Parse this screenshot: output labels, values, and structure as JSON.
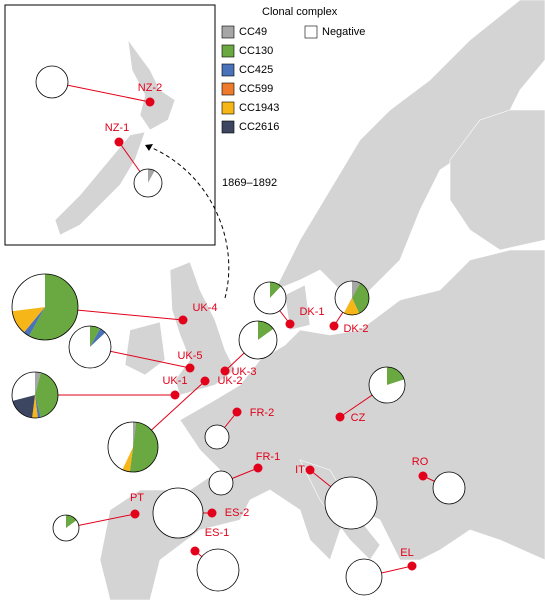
{
  "legend": {
    "title": "Clonal complex",
    "items": [
      {
        "name": "CC49",
        "color": "#a6a6a6"
      },
      {
        "name": "CC130",
        "color": "#6aa842"
      },
      {
        "name": "CC425",
        "color": "#4a72b8"
      },
      {
        "name": "CC599",
        "color": "#ee7a2c"
      },
      {
        "name": "CC1943",
        "color": "#f7b618"
      },
      {
        "name": "CC2616",
        "color": "#3c4660"
      },
      {
        "name": "Negative",
        "color": "#ffffff"
      }
    ]
  },
  "annotation": "1869–1892",
  "sites": [
    {
      "label": "NZ-2",
      "values": [
        0,
        0,
        0,
        0,
        0,
        0,
        100
      ]
    },
    {
      "label": "NZ-1",
      "values": [
        8,
        0,
        0,
        0,
        0,
        0,
        92
      ]
    },
    {
      "label": "UK-4",
      "values": [
        0,
        58,
        3,
        0,
        12,
        0,
        27
      ]
    },
    {
      "label": "UK-5",
      "values": [
        0,
        8,
        5,
        0,
        0,
        0,
        87
      ]
    },
    {
      "label": "UK-3",
      "values": [
        0,
        15,
        0,
        0,
        0,
        0,
        85
      ]
    },
    {
      "label": "UK-2",
      "values": [
        2,
        50,
        0,
        0,
        5,
        0,
        43
      ]
    },
    {
      "label": "UK-1",
      "values": [
        4,
        42,
        2,
        0,
        4,
        19,
        29
      ]
    },
    {
      "label": "FR-2",
      "values": [
        0,
        0,
        0,
        0,
        0,
        0,
        100
      ]
    },
    {
      "label": "FR-1",
      "values": [
        0,
        0,
        0,
        0,
        0,
        0,
        100
      ]
    },
    {
      "label": "DK-1",
      "values": [
        0,
        12,
        0,
        0,
        0,
        0,
        88
      ]
    },
    {
      "label": "DK-2",
      "values": [
        8,
        35,
        0,
        0,
        15,
        0,
        42
      ]
    },
    {
      "label": "CZ",
      "values": [
        0,
        20,
        0,
        0,
        0,
        0,
        80
      ]
    },
    {
      "label": "IT",
      "values": [
        0,
        0,
        0,
        0,
        0,
        0,
        100
      ]
    },
    {
      "label": "RO",
      "values": [
        0,
        0,
        0,
        0,
        0,
        0,
        100
      ]
    },
    {
      "label": "PT",
      "values": [
        0,
        15,
        0,
        0,
        0,
        0,
        85
      ]
    },
    {
      "label": "ES-2",
      "values": [
        0,
        0,
        0,
        0,
        0,
        0,
        100
      ]
    },
    {
      "label": "ES-1",
      "values": [
        0,
        0,
        0,
        0,
        0,
        0,
        100
      ]
    },
    {
      "label": "EL",
      "values": [
        0,
        0,
        0,
        0,
        0,
        0,
        100
      ]
    }
  ]
}
